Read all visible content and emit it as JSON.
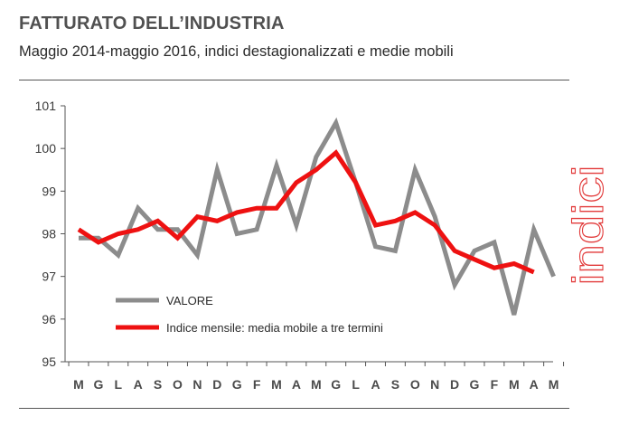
{
  "header": {
    "title": "FATTURATO DELL’INDUSTRIA",
    "subtitle": "Maggio 2014-maggio 2016, indici destagionalizzati e medie mobili"
  },
  "side_label": "indici",
  "chart_data": {
    "type": "line",
    "title": "FATTURATO DELL’INDUSTRIA",
    "subtitle": "Maggio 2014-maggio 2016, indici destagionalizzati e medie mobili",
    "categories": [
      "M",
      "G",
      "L",
      "A",
      "S",
      "O",
      "N",
      "D",
      "G",
      "F",
      "M",
      "A",
      "M",
      "G",
      "L",
      "A",
      "S",
      "O",
      "N",
      "D",
      "G",
      "F",
      "M",
      "A",
      "M"
    ],
    "ylim": [
      95,
      101
    ],
    "yticks": [
      95,
      96,
      97,
      98,
      99,
      100,
      101
    ],
    "grid": false,
    "legend_position": "bottom-left",
    "series": [
      {
        "name": "VALORE",
        "color": "#8c8c8c",
        "values": [
          97.9,
          97.9,
          97.5,
          98.6,
          98.1,
          98.1,
          97.5,
          99.5,
          98.0,
          98.1,
          99.6,
          98.2,
          99.8,
          100.6,
          99.2,
          97.7,
          97.6,
          99.5,
          98.4,
          96.8,
          97.6,
          97.8,
          96.1,
          98.1,
          97.0
        ]
      },
      {
        "name": "Indice mensile: media mobile a tre termini",
        "color": "#ee1111",
        "values": [
          98.1,
          97.8,
          98.0,
          98.1,
          98.3,
          97.9,
          98.4,
          98.3,
          98.5,
          98.6,
          98.6,
          99.2,
          99.5,
          99.9,
          99.2,
          98.2,
          98.3,
          98.5,
          98.2,
          97.6,
          97.4,
          97.2,
          97.3,
          97.1,
          null
        ]
      }
    ]
  }
}
